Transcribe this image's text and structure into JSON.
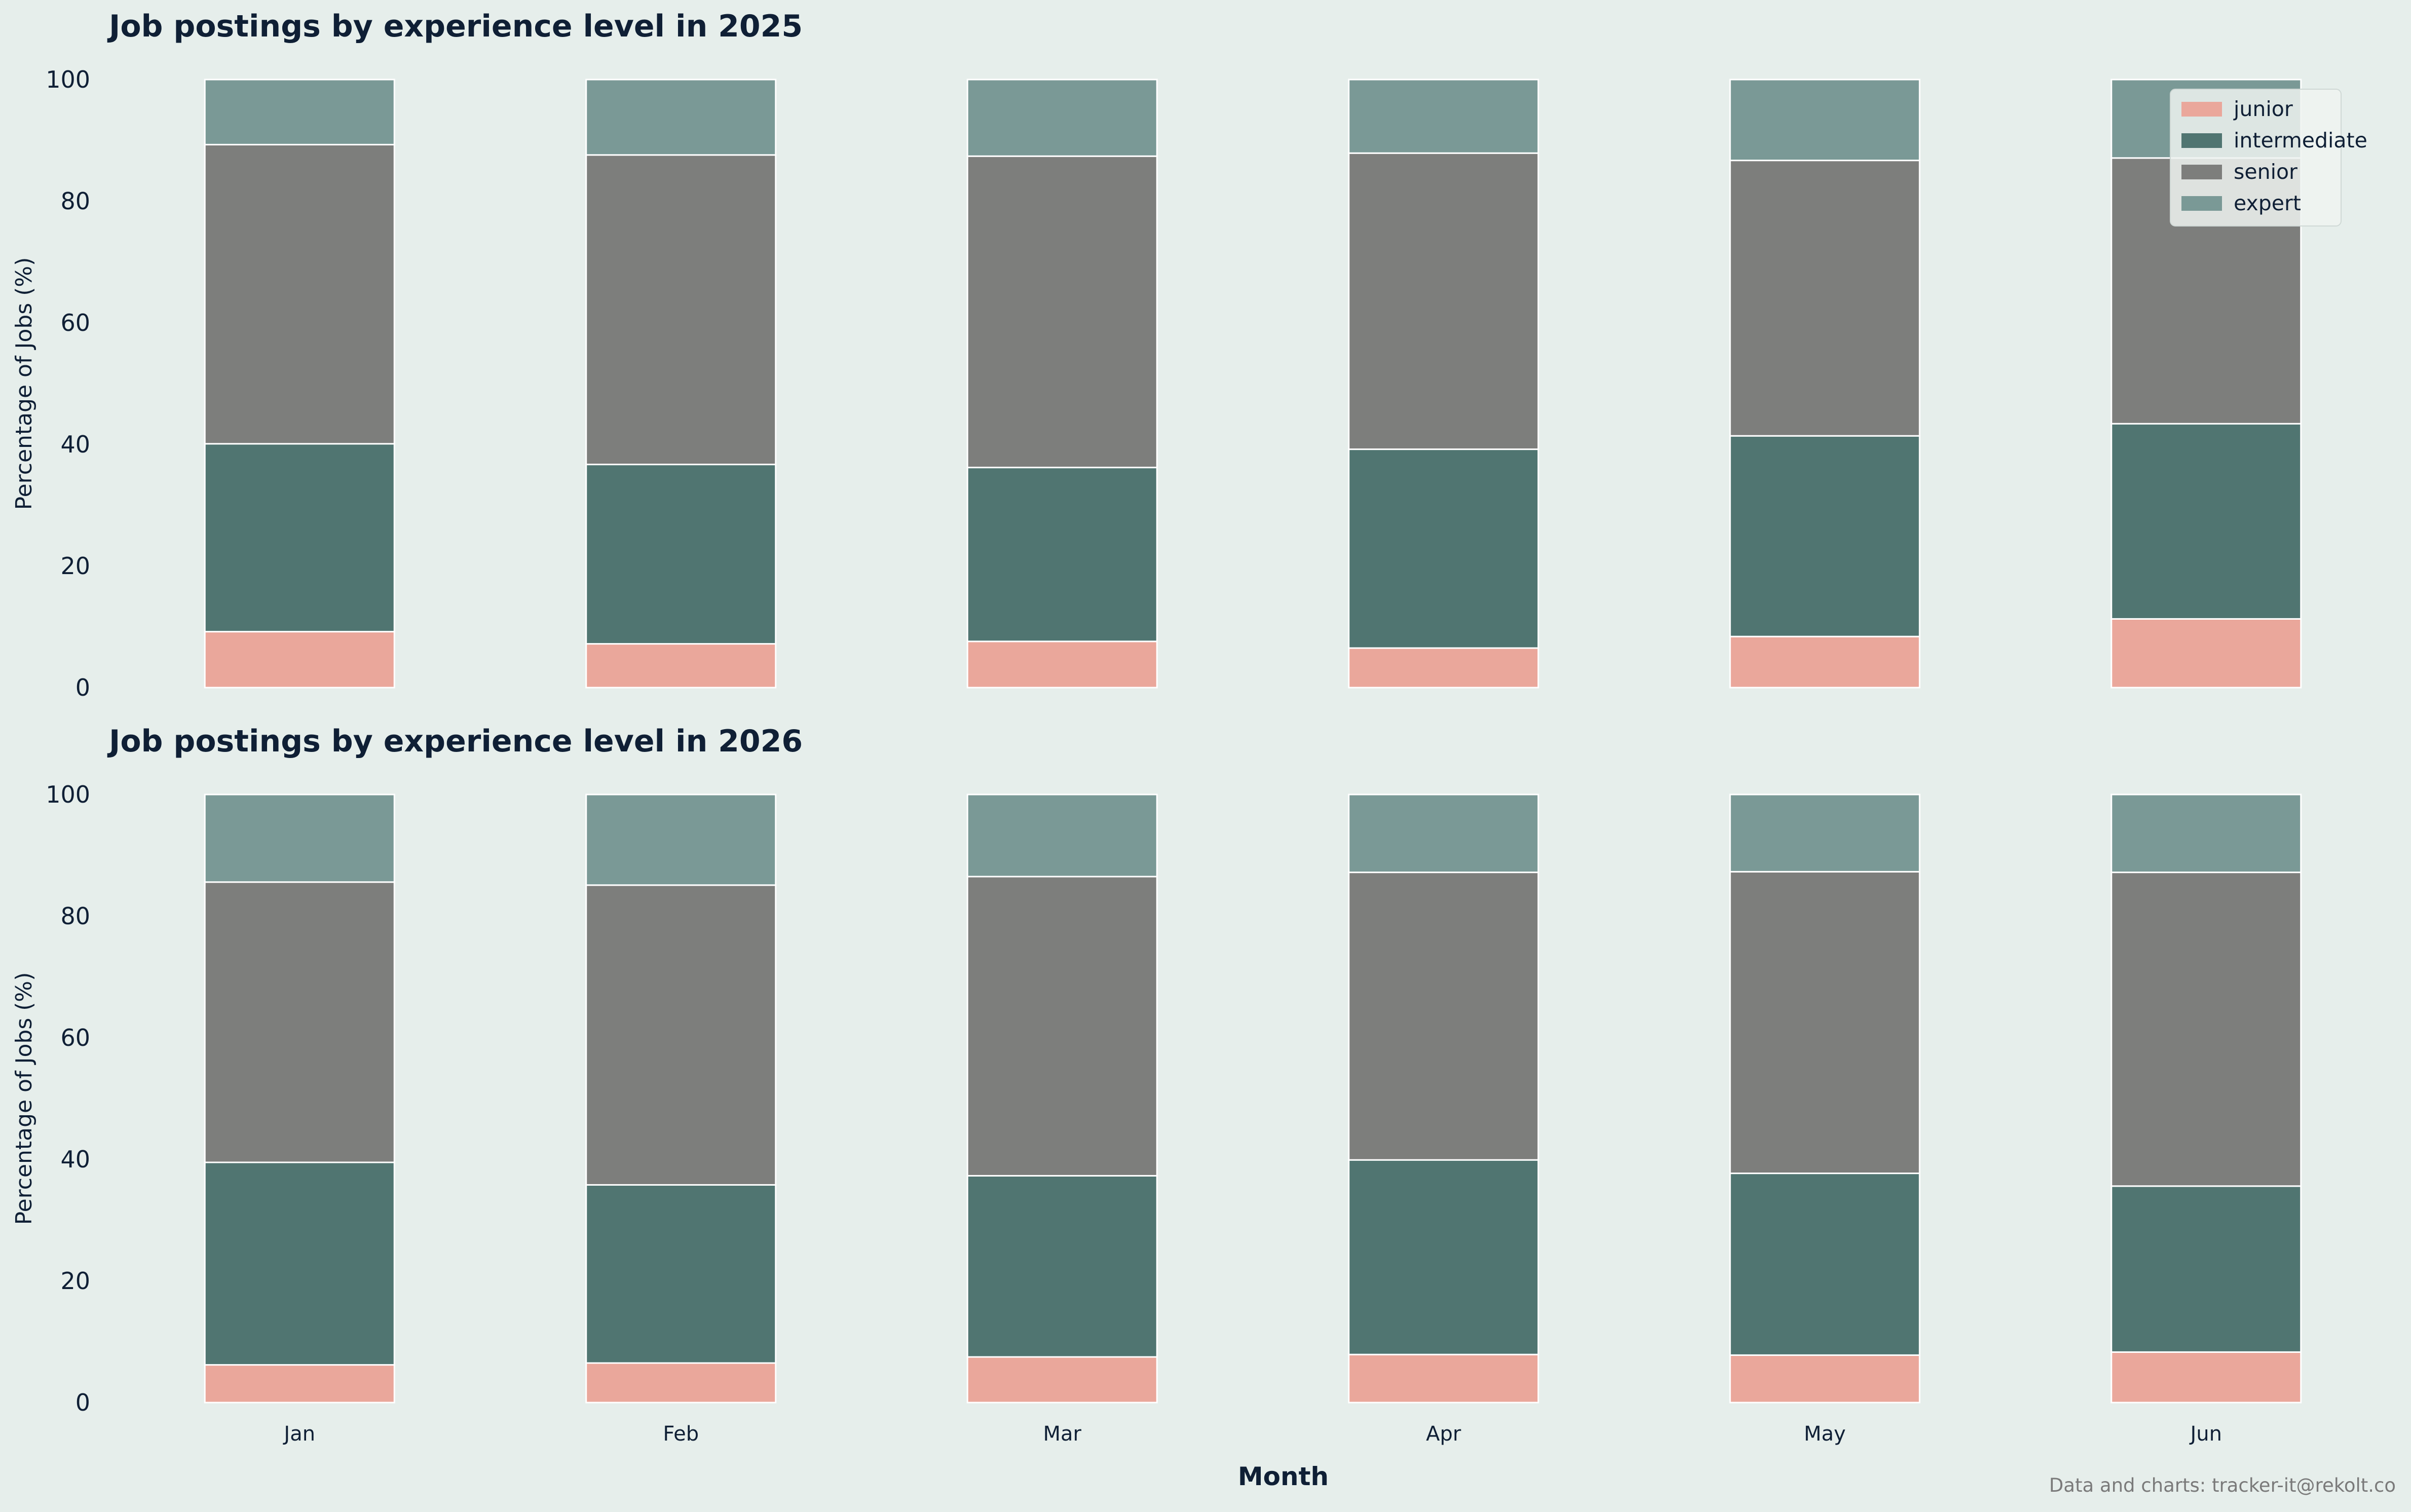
{
  "credit": "Data and charts: tracker-it@rekolt.co",
  "colors": {
    "background": "#e6eeeb",
    "junior": "#eaa79b",
    "intermediate": "#507571",
    "senior": "#7d7e7c",
    "expert": "#7a9996"
  },
  "legend": {
    "placement": "top-right of upper panel",
    "items": [
      "junior",
      "intermediate",
      "senior",
      "expert"
    ]
  },
  "chart_data": [
    {
      "type": "bar",
      "stacked": true,
      "title": "Job postings by experience level in 2025",
      "xlabel": "",
      "ylabel": "Percentage of Jobs (%)",
      "ylim": [
        0,
        100
      ],
      "yticks": [
        "0",
        "20",
        "40",
        "60",
        "80",
        "100"
      ],
      "categories": [
        "Jan",
        "Feb",
        "Mar",
        "Apr",
        "May",
        "Jun"
      ],
      "series": [
        {
          "name": "junior",
          "values": [
            9.2,
            7.2,
            7.6,
            6.5,
            8.4,
            11.3
          ]
        },
        {
          "name": "intermediate",
          "values": [
            30.9,
            29.5,
            28.6,
            32.7,
            33.0,
            32.1
          ]
        },
        {
          "name": "senior",
          "values": [
            49.2,
            50.9,
            51.2,
            48.7,
            45.3,
            43.7
          ]
        },
        {
          "name": "expert",
          "values": [
            10.7,
            12.4,
            12.6,
            12.1,
            13.3,
            12.9
          ]
        }
      ]
    },
    {
      "type": "bar",
      "stacked": true,
      "title": "Job postings by experience level in 2026",
      "xlabel": "Month",
      "ylabel": "Percentage of Jobs (%)",
      "ylim": [
        0,
        100
      ],
      "yticks": [
        "0",
        "20",
        "40",
        "60",
        "80",
        "100"
      ],
      "categories": [
        "Jan",
        "Feb",
        "Mar",
        "Apr",
        "May",
        "Jun"
      ],
      "series": [
        {
          "name": "junior",
          "values": [
            6.2,
            6.5,
            7.5,
            7.9,
            7.8,
            8.3
          ]
        },
        {
          "name": "intermediate",
          "values": [
            33.3,
            29.3,
            29.8,
            32.0,
            29.9,
            27.3
          ]
        },
        {
          "name": "senior",
          "values": [
            46.1,
            49.3,
            49.2,
            47.3,
            49.6,
            51.6
          ]
        },
        {
          "name": "expert",
          "values": [
            14.4,
            14.9,
            13.5,
            12.8,
            12.7,
            12.8
          ]
        }
      ]
    }
  ]
}
